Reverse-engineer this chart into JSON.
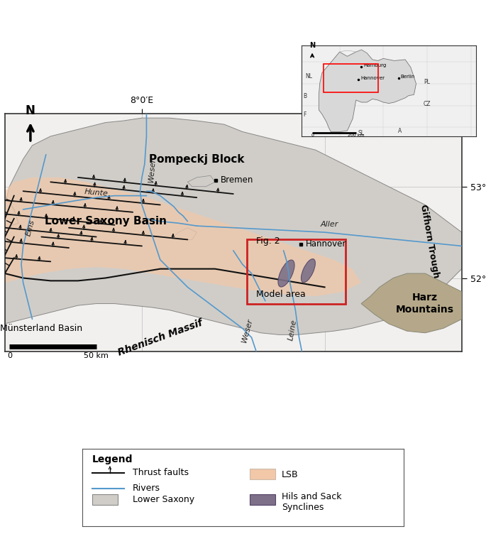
{
  "fig_width": 6.85,
  "fig_height": 7.52,
  "dpi": 100,
  "xlim": [
    6.5,
    11.5
  ],
  "ylim": [
    51.2,
    53.8
  ],
  "map_bg": "#f2f0ee",
  "lower_saxony_color": "#d0cdc8",
  "lsb_color": "#f2c8a8",
  "harz_color": "#b5a88a",
  "syncline_color": "#7d7088",
  "river_color": "#5599cc",
  "fault_color": "#111111",
  "grid_color": "#cccccc",
  "red_box_color": "#cc2222",
  "axis_label_fontsize": 9,
  "label_fontsize": 9
}
